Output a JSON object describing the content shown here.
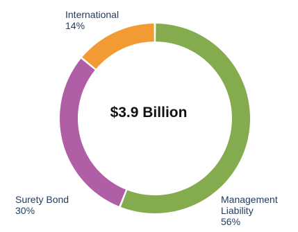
{
  "chart_data": {
    "type": "pie",
    "variant": "donut",
    "center_label": "$3.9 Billion",
    "slices": [
      {
        "name": "Management Liability",
        "value": 56,
        "value_label": "56%",
        "color": "#85ab4f"
      },
      {
        "name": "Surety Bond",
        "value": 30,
        "value_label": "30%",
        "color": "#b05ea5"
      },
      {
        "name": "International",
        "value": 14,
        "value_label": "14%",
        "color": "#f29a34"
      }
    ],
    "legend": "none"
  }
}
